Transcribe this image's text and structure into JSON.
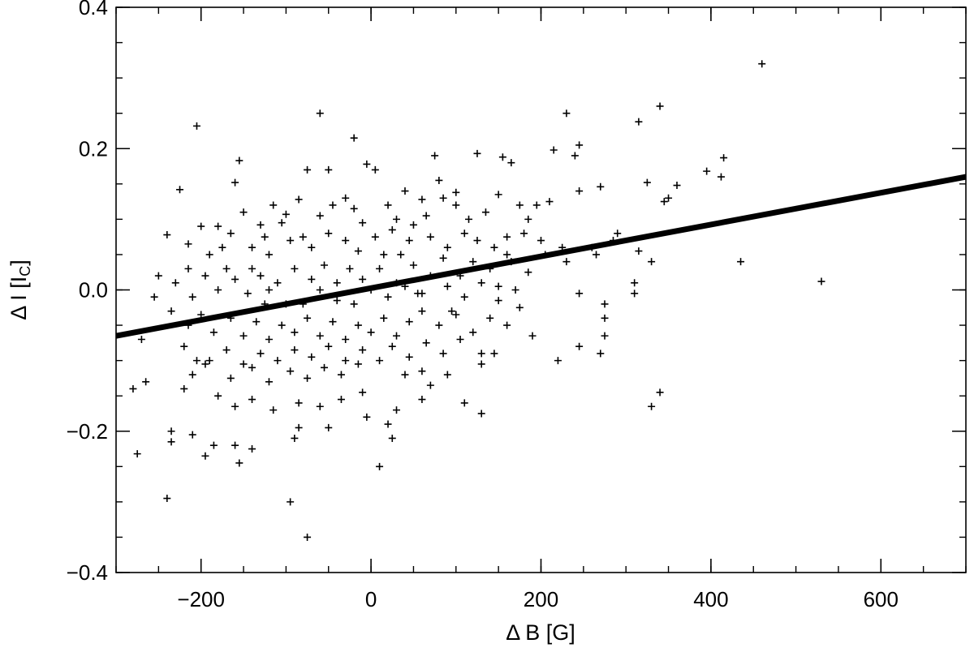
{
  "chart_data": {
    "type": "scatter",
    "xlabel": "Δ B [G]",
    "ylabel_main": "Δ I [I",
    "ylabel_sub": "C",
    "ylabel_end": "]",
    "xlim": [
      -300,
      700
    ],
    "ylim": [
      -0.4,
      0.4
    ],
    "x_ticks": [
      -200,
      0,
      200,
      400,
      600
    ],
    "x_tick_labels": [
      "−200",
      "0",
      "200",
      "400",
      "600"
    ],
    "y_ticks": [
      -0.4,
      -0.2,
      0.0,
      0.2,
      0.4
    ],
    "y_tick_labels": [
      "−0.4",
      "−0.2",
      "0.0",
      "0.2",
      "0.4"
    ],
    "x_minor_step": 50,
    "y_minor_step": 0.05,
    "grid": false,
    "marker": "plus",
    "series": [
      {
        "points": [
          [
            460,
            0.32
          ],
          [
            -60,
            0.25
          ],
          [
            230,
            0.25
          ],
          [
            340,
            0.26
          ],
          [
            -205,
            0.232
          ],
          [
            -20,
            0.215
          ],
          [
            315,
            0.238
          ],
          [
            245,
            0.205
          ],
          [
            240,
            0.19
          ],
          [
            75,
            0.19
          ],
          [
            -155,
            0.183
          ],
          [
            415,
            0.187
          ],
          [
            395,
            0.168
          ],
          [
            412,
            0.16
          ],
          [
            -5,
            0.178
          ],
          [
            5,
            0.17
          ],
          [
            -75,
            0.17
          ],
          [
            -50,
            0.17
          ],
          [
            125,
            0.193
          ],
          [
            155,
            0.188
          ],
          [
            165,
            0.18
          ],
          [
            -225,
            0.142
          ],
          [
            -160,
            0.152
          ],
          [
            325,
            0.152
          ],
          [
            360,
            0.148
          ],
          [
            350,
            0.13
          ],
          [
            345,
            0.125
          ],
          [
            215,
            0.198
          ],
          [
            270,
            0.146
          ],
          [
            245,
            0.14
          ],
          [
            -30,
            0.13
          ],
          [
            -85,
            0.128
          ],
          [
            40,
            0.14
          ],
          [
            60,
            0.128
          ],
          [
            85,
            0.13
          ],
          [
            -200,
            0.09
          ],
          [
            -180,
            0.09
          ],
          [
            -165,
            0.08
          ],
          [
            -130,
            0.092
          ],
          [
            -105,
            0.095
          ],
          [
            -115,
            0.12
          ],
          [
            -100,
            0.107
          ],
          [
            -60,
            0.105
          ],
          [
            -20,
            0.115
          ],
          [
            20,
            0.12
          ],
          [
            30,
            0.1
          ],
          [
            65,
            0.105
          ],
          [
            100,
            0.12
          ],
          [
            135,
            0.11
          ],
          [
            150,
            0.135
          ],
          [
            175,
            0.12
          ],
          [
            195,
            0.12
          ],
          [
            210,
            0.125
          ],
          [
            185,
            0.1
          ],
          [
            -240,
            0.078
          ],
          [
            -215,
            0.065
          ],
          [
            -190,
            0.05
          ],
          [
            -170,
            0.03
          ],
          [
            -140,
            0.06
          ],
          [
            -120,
            0.05
          ],
          [
            -95,
            0.07
          ],
          [
            -80,
            0.075
          ],
          [
            -70,
            0.06
          ],
          [
            -50,
            0.08
          ],
          [
            -30,
            0.07
          ],
          [
            -15,
            0.055
          ],
          [
            5,
            0.075
          ],
          [
            25,
            0.085
          ],
          [
            45,
            0.07
          ],
          [
            70,
            0.075
          ],
          [
            90,
            0.06
          ],
          [
            110,
            0.08
          ],
          [
            125,
            0.07
          ],
          [
            145,
            0.06
          ],
          [
            160,
            0.075
          ],
          [
            180,
            0.08
          ],
          [
            200,
            0.07
          ],
          [
            225,
            0.06
          ],
          [
            260,
            0.06
          ],
          [
            290,
            0.08
          ],
          [
            -250,
            0.02
          ],
          [
            -230,
            0.01
          ],
          [
            -210,
            -0.01
          ],
          [
            -195,
            0.02
          ],
          [
            -180,
            0.0
          ],
          [
            -160,
            0.015
          ],
          [
            -145,
            -0.005
          ],
          [
            -130,
            0.02
          ],
          [
            -110,
            0.01
          ],
          [
            -90,
            0.03
          ],
          [
            -70,
            0.015
          ],
          [
            -55,
            0.035
          ],
          [
            -40,
            0.01
          ],
          [
            -25,
            0.03
          ],
          [
            -10,
            0.015
          ],
          [
            10,
            0.03
          ],
          [
            30,
            0.01
          ],
          [
            50,
            0.035
          ],
          [
            70,
            0.02
          ],
          [
            85,
            0.045
          ],
          [
            105,
            0.02
          ],
          [
            120,
            0.04
          ],
          [
            140,
            0.03
          ],
          [
            165,
            0.04
          ],
          [
            185,
            0.025
          ],
          [
            205,
            0.05
          ],
          [
            230,
            0.04
          ],
          [
            265,
            0.05
          ],
          [
            -235,
            -0.03
          ],
          [
            -215,
            -0.05
          ],
          [
            -200,
            -0.035
          ],
          [
            -185,
            -0.06
          ],
          [
            -165,
            -0.04
          ],
          [
            -150,
            -0.065
          ],
          [
            -135,
            -0.045
          ],
          [
            -120,
            -0.07
          ],
          [
            -105,
            -0.05
          ],
          [
            -90,
            -0.06
          ],
          [
            -75,
            -0.04
          ],
          [
            -60,
            -0.065
          ],
          [
            -45,
            -0.045
          ],
          [
            -30,
            -0.07
          ],
          [
            -15,
            -0.05
          ],
          [
            0,
            -0.06
          ],
          [
            15,
            -0.04
          ],
          [
            30,
            -0.065
          ],
          [
            45,
            -0.045
          ],
          [
            60,
            -0.03
          ],
          [
            80,
            -0.05
          ],
          [
            100,
            -0.035
          ],
          [
            120,
            -0.06
          ],
          [
            140,
            -0.04
          ],
          [
            160,
            -0.05
          ],
          [
            175,
            -0.025
          ],
          [
            -220,
            -0.08
          ],
          [
            -190,
            -0.1
          ],
          [
            -170,
            -0.085
          ],
          [
            -150,
            -0.105
          ],
          [
            -130,
            -0.09
          ],
          [
            -110,
            -0.1
          ],
          [
            -90,
            -0.085
          ],
          [
            -70,
            -0.095
          ],
          [
            -50,
            -0.08
          ],
          [
            -30,
            -0.1
          ],
          [
            -10,
            -0.085
          ],
          [
            10,
            -0.1
          ],
          [
            25,
            -0.08
          ],
          [
            45,
            -0.095
          ],
          [
            65,
            -0.075
          ],
          [
            85,
            -0.09
          ],
          [
            105,
            -0.07
          ],
          [
            -195,
            -0.105
          ],
          [
            -165,
            -0.125
          ],
          [
            -140,
            -0.11
          ],
          [
            -120,
            -0.13
          ],
          [
            -95,
            -0.115
          ],
          [
            -75,
            -0.125
          ],
          [
            -55,
            -0.11
          ],
          [
            -35,
            -0.12
          ],
          [
            -15,
            -0.105
          ],
          [
            40,
            -0.12
          ],
          [
            60,
            -0.115
          ],
          [
            90,
            -0.12
          ],
          [
            130,
            -0.105
          ],
          [
            190,
            -0.065
          ],
          [
            220,
            -0.1
          ],
          [
            245,
            -0.08
          ],
          [
            270,
            -0.09
          ],
          [
            -270,
            -0.07
          ],
          [
            -255,
            -0.01
          ],
          [
            -280,
            -0.14
          ],
          [
            -265,
            -0.13
          ],
          [
            -220,
            -0.14
          ],
          [
            -210,
            -0.12
          ],
          [
            -180,
            -0.15
          ],
          [
            -160,
            -0.165
          ],
          [
            -140,
            -0.155
          ],
          [
            -115,
            -0.17
          ],
          [
            -85,
            -0.16
          ],
          [
            -60,
            -0.165
          ],
          [
            -35,
            -0.155
          ],
          [
            -10,
            -0.145
          ],
          [
            30,
            -0.17
          ],
          [
            60,
            -0.155
          ],
          [
            110,
            -0.16
          ],
          [
            130,
            -0.175
          ],
          [
            70,
            -0.135
          ],
          [
            -235,
            -0.2
          ],
          [
            -235,
            -0.215
          ],
          [
            -210,
            -0.205
          ],
          [
            -195,
            -0.235
          ],
          [
            -185,
            -0.22
          ],
          [
            -160,
            -0.22
          ],
          [
            -155,
            -0.245
          ],
          [
            -140,
            -0.225
          ],
          [
            -85,
            -0.195
          ],
          [
            -90,
            -0.21
          ],
          [
            -50,
            -0.195
          ],
          [
            -5,
            -0.18
          ],
          [
            20,
            -0.19
          ],
          [
            25,
            -0.21
          ],
          [
            10,
            -0.25
          ],
          [
            -240,
            -0.295
          ],
          [
            -95,
            -0.3
          ],
          [
            -75,
            -0.35
          ],
          [
            -275,
            -0.232
          ],
          [
            330,
            -0.165
          ],
          [
            340,
            -0.145
          ],
          [
            315,
            0.055
          ],
          [
            330,
            0.04
          ],
          [
            310,
            0.01
          ],
          [
            310,
            -0.005
          ],
          [
            435,
            0.04
          ],
          [
            530,
            0.012
          ],
          [
            275,
            -0.02
          ],
          [
            275,
            -0.04
          ],
          [
            275,
            -0.065
          ],
          [
            245,
            -0.005
          ],
          [
            285,
            0.07
          ],
          [
            160,
            0.05
          ],
          [
            150,
            0.005
          ],
          [
            130,
            -0.09
          ],
          [
            145,
            -0.09
          ],
          [
            80,
            0.155
          ],
          [
            100,
            0.138
          ],
          [
            50,
            0.092
          ],
          [
            -100,
            -0.02
          ],
          [
            -120,
            0.0
          ],
          [
            -140,
            0.03
          ],
          [
            -60,
            0.0
          ],
          [
            0,
            0.0
          ],
          [
            20,
            -0.01
          ],
          [
            40,
            0.005
          ],
          [
            60,
            -0.005
          ],
          [
            90,
            0.005
          ],
          [
            110,
            -0.01
          ],
          [
            130,
            0.01
          ],
          [
            150,
            -0.015
          ],
          [
            170,
            0.0
          ],
          [
            -80,
            -0.02
          ],
          [
            -40,
            -0.015
          ],
          [
            -20,
            -0.02
          ],
          [
            35,
            0.05
          ],
          [
            -10,
            0.095
          ],
          [
            -45,
            0.12
          ],
          [
            115,
            0.1
          ],
          [
            -150,
            0.11
          ],
          [
            -125,
            0.075
          ],
          [
            55,
            -0.005
          ],
          [
            -175,
            0.06
          ],
          [
            -215,
            0.03
          ],
          [
            -205,
            -0.1
          ],
          [
            -125,
            -0.02
          ],
          [
            95,
            -0.03
          ],
          [
            15,
            0.05
          ]
        ]
      }
    ],
    "trend_line": {
      "x": [
        -300,
        700
      ],
      "y": [
        -0.065,
        0.16
      ]
    }
  }
}
